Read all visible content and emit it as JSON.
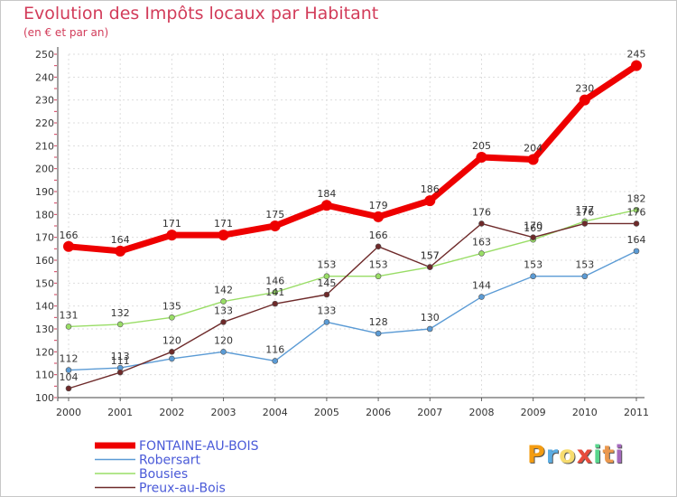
{
  "chart_data": {
    "type": "line",
    "title": "Evolution des Impôts locaux par Habitant",
    "subtitle": "(en € et par an)",
    "xlabel": "",
    "ylabel": "",
    "ylim": [
      100,
      250
    ],
    "yticks": [
      100,
      110,
      120,
      130,
      140,
      150,
      160,
      170,
      180,
      190,
      200,
      210,
      220,
      230,
      240,
      250
    ],
    "x": [
      "2000",
      "2001",
      "2002",
      "2003",
      "2004",
      "2005",
      "2006",
      "2007",
      "2008",
      "2009",
      "2010",
      "2011"
    ],
    "grid": true,
    "legend_position": "bottom-left",
    "series": [
      {
        "name": "Robersart",
        "color": "#5b9bd5",
        "values": [
          112,
          113,
          117,
          120,
          116,
          133,
          128,
          130,
          144,
          153,
          153,
          164
        ],
        "labels": [
          "112",
          "113",
          "",
          "120",
          "116",
          "133",
          "128",
          "130",
          "144",
          "153",
          "153",
          "164"
        ]
      },
      {
        "name": "Bousies",
        "color": "#99dd66",
        "values": [
          131,
          132,
          135,
          142,
          146,
          153,
          153,
          157,
          163,
          169,
          177,
          182
        ],
        "labels": [
          "131",
          "132",
          "135",
          "142",
          "146",
          "153",
          "153",
          "157",
          "163",
          "169",
          "177",
          "182"
        ]
      },
      {
        "name": "Preux-au-Bois",
        "color": "#6e2a2a",
        "values": [
          104,
          111,
          120,
          133,
          141,
          145,
          166,
          157,
          176,
          170,
          176,
          176
        ],
        "labels": [
          "104",
          "111",
          "120",
          "133",
          "141",
          "145",
          "166",
          "157",
          "176",
          "170",
          "176",
          "176"
        ]
      },
      {
        "name": "FONTAINE-AU-BOIS",
        "color": "#ee0000",
        "values": [
          166,
          164,
          171,
          171,
          175,
          184,
          179,
          186,
          205,
          204,
          230,
          245
        ],
        "labels": [
          "166",
          "164",
          "171",
          "171",
          "175",
          "184",
          "179",
          "186",
          "205",
          "204",
          "230",
          "245"
        ]
      }
    ],
    "legend": [
      "FONTAINE-AU-BOIS",
      "Robersart",
      "Bousies",
      "Preux-au-Bois"
    ]
  },
  "logo": {
    "letters": [
      "P",
      "r",
      "o",
      "x",
      "i",
      "t",
      "i"
    ],
    "colors": [
      "#f39c12",
      "#5dade2",
      "#f7dc6f",
      "#e74c3c",
      "#58d68d",
      "#eb984e",
      "#a569bd"
    ]
  }
}
